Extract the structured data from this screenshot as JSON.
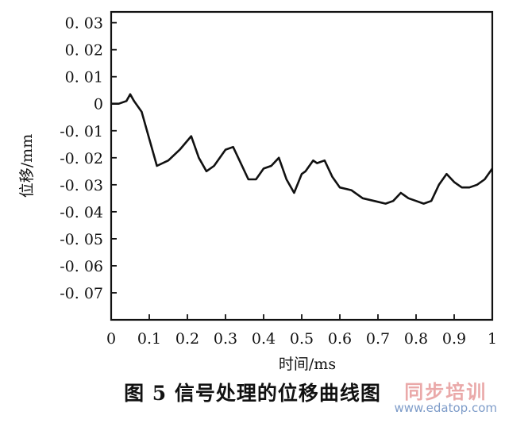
{
  "chart_data": {
    "type": "line",
    "xlabel": "时间/ms",
    "ylabel": "位移/mm",
    "xlim": [
      0,
      1
    ],
    "ylim": [
      -0.08,
      0.034
    ],
    "xticks": [
      "0",
      "0.1",
      "0.2",
      "0.3",
      "0.4",
      "0.5",
      "0.6",
      "0.7",
      "0.8",
      "0.9",
      "1"
    ],
    "yticks": [
      {
        "value": 0.03,
        "label": "0. 03"
      },
      {
        "value": 0.02,
        "label": "0. 02"
      },
      {
        "value": 0.01,
        "label": "0. 01"
      },
      {
        "value": 0,
        "label": "0"
      },
      {
        "value": -0.01,
        "label": "-0. 01"
      },
      {
        "value": -0.02,
        "label": "-0. 02"
      },
      {
        "value": -0.03,
        "label": "-0. 03"
      },
      {
        "value": -0.04,
        "label": "-0. 04"
      },
      {
        "value": -0.05,
        "label": "-0. 05"
      },
      {
        "value": -0.06,
        "label": "-0. 06"
      },
      {
        "value": -0.07,
        "label": "-0. 07"
      }
    ],
    "grid": false,
    "series": [
      {
        "x": [
          0,
          0.02,
          0.04,
          0.05,
          0.06,
          0.08,
          0.1,
          0.12,
          0.15,
          0.18,
          0.21,
          0.23,
          0.25,
          0.27,
          0.3,
          0.32,
          0.34,
          0.36,
          0.38,
          0.4,
          0.42,
          0.44,
          0.46,
          0.48,
          0.5,
          0.51,
          0.53,
          0.54,
          0.56,
          0.58,
          0.6,
          0.63,
          0.66,
          0.69,
          0.72,
          0.74,
          0.76,
          0.78,
          0.8,
          0.82,
          0.84,
          0.86,
          0.88,
          0.9,
          0.92,
          0.94,
          0.96,
          0.98,
          1.0
        ],
        "y": [
          0,
          0,
          0.001,
          0.0035,
          0.001,
          -0.003,
          -0.013,
          -0.023,
          -0.021,
          -0.017,
          -0.012,
          -0.02,
          -0.025,
          -0.023,
          -0.017,
          -0.016,
          -0.022,
          -0.028,
          -0.028,
          -0.024,
          -0.023,
          -0.02,
          -0.028,
          -0.033,
          -0.026,
          -0.025,
          -0.021,
          -0.022,
          -0.021,
          -0.027,
          -0.031,
          -0.032,
          -0.035,
          -0.036,
          -0.037,
          -0.036,
          -0.033,
          -0.035,
          -0.036,
          -0.037,
          -0.036,
          -0.03,
          -0.026,
          -0.029,
          -0.031,
          -0.031,
          -0.03,
          -0.028,
          -0.024
        ]
      }
    ]
  },
  "caption": "图 5  信号处理的位移曲线图",
  "watermark": {
    "cn": "同步培训",
    "url": "www.edatop.com",
    "colors": {
      "cn": "#e8a0a0",
      "url": "#7e9cc9"
    }
  }
}
